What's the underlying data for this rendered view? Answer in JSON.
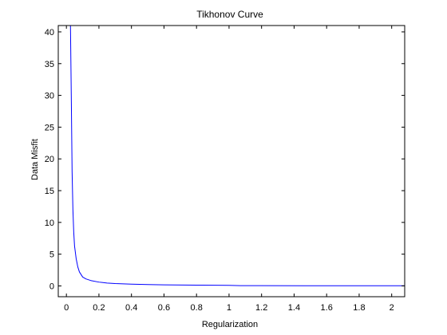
{
  "chart_data": {
    "type": "line",
    "title": "Tikhonov Curve",
    "xlabel": "Regularization",
    "ylabel": "Data Misfit",
    "xlim": [
      -0.05,
      2.08
    ],
    "ylim": [
      -1.7,
      41
    ],
    "xticks": [
      0,
      0.2,
      0.4,
      0.6,
      0.8,
      1,
      1.2,
      1.4,
      1.6,
      1.8,
      2
    ],
    "xtick_labels": [
      "0",
      "0.2",
      "0.4",
      "0.6",
      "0.8",
      "1",
      "1.2",
      "1.4",
      "1.6",
      "1.8",
      "2"
    ],
    "yticks": [
      0,
      5,
      10,
      15,
      20,
      25,
      30,
      35,
      40
    ],
    "ytick_labels": [
      "0",
      "5",
      "10",
      "15",
      "20",
      "25",
      "30",
      "35",
      "40"
    ],
    "grid": false,
    "legend": "none",
    "series": [
      {
        "color": "#0000ff",
        "x": [
          0.025,
          0.03,
          0.035,
          0.04,
          0.045,
          0.05,
          0.06,
          0.07,
          0.08,
          0.1,
          0.12,
          0.15,
          0.2,
          0.25,
          0.3,
          0.4,
          0.5,
          0.6,
          0.8,
          1.0,
          1.07,
          1.2,
          1.5,
          2.0,
          2.08
        ],
        "y": [
          41,
          30,
          18,
          12,
          8.5,
          6.3,
          4.3,
          3.0,
          2.2,
          1.4,
          1.1,
          0.85,
          0.6,
          0.45,
          0.37,
          0.27,
          0.22,
          0.17,
          0.12,
          0.09,
          0.05,
          0.04,
          0.03,
          0.02,
          0.02
        ]
      }
    ]
  }
}
